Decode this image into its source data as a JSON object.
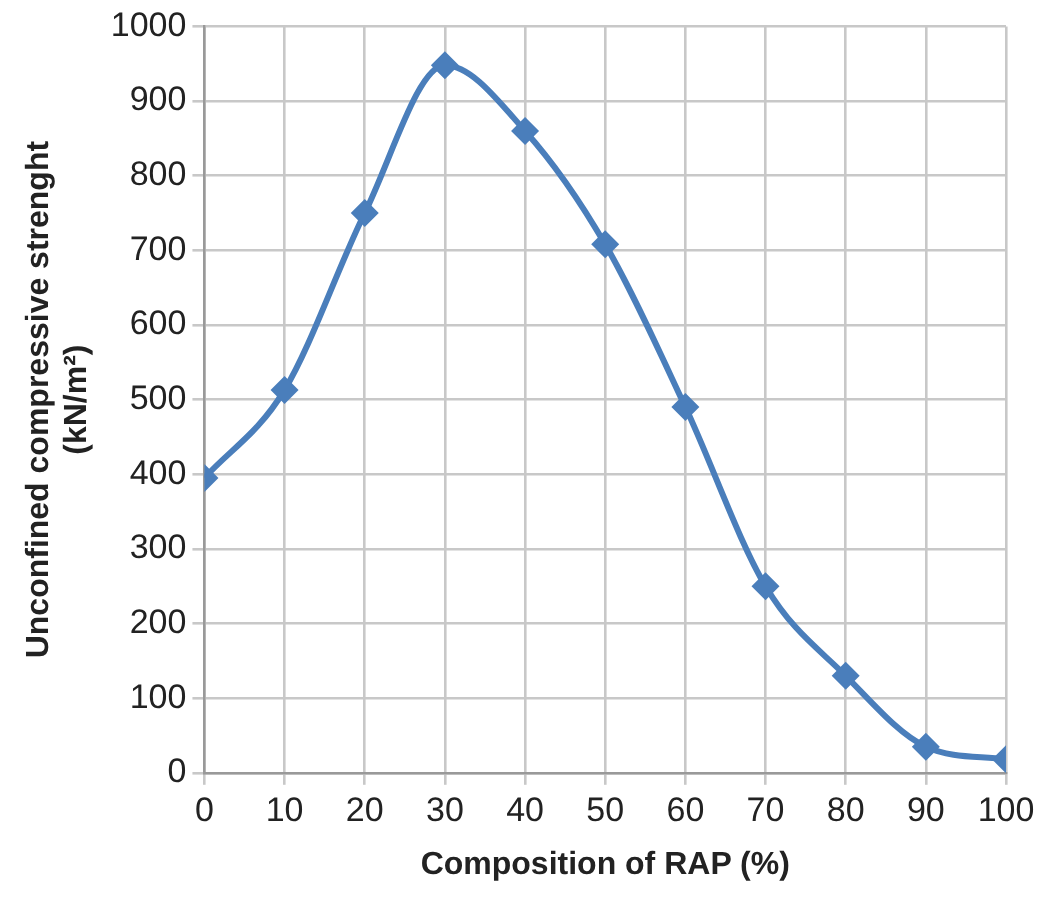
{
  "chart_data": {
    "type": "line",
    "xlabel": "Composition of RAP (%)",
    "ylabel": "Unconfined compressive strenght (kN/m²)",
    "x": [
      0,
      10,
      20,
      30,
      40,
      50,
      60,
      70,
      80,
      90,
      100
    ],
    "series": [
      {
        "color": "#4a7ebb",
        "values": [
          395,
          513,
          750,
          948,
          860,
          708,
          490,
          250,
          130,
          35,
          18
        ]
      }
    ],
    "xlim": [
      0,
      100
    ],
    "xticks": [
      0,
      10,
      20,
      30,
      40,
      50,
      60,
      70,
      80,
      90,
      100
    ],
    "ylim": [
      0,
      1000
    ],
    "yticks": [
      0,
      100,
      200,
      300,
      400,
      500,
      600,
      700,
      800,
      900,
      1000
    ],
    "grid": true,
    "legend": false,
    "marker": "diamond",
    "line_style": "solid"
  }
}
